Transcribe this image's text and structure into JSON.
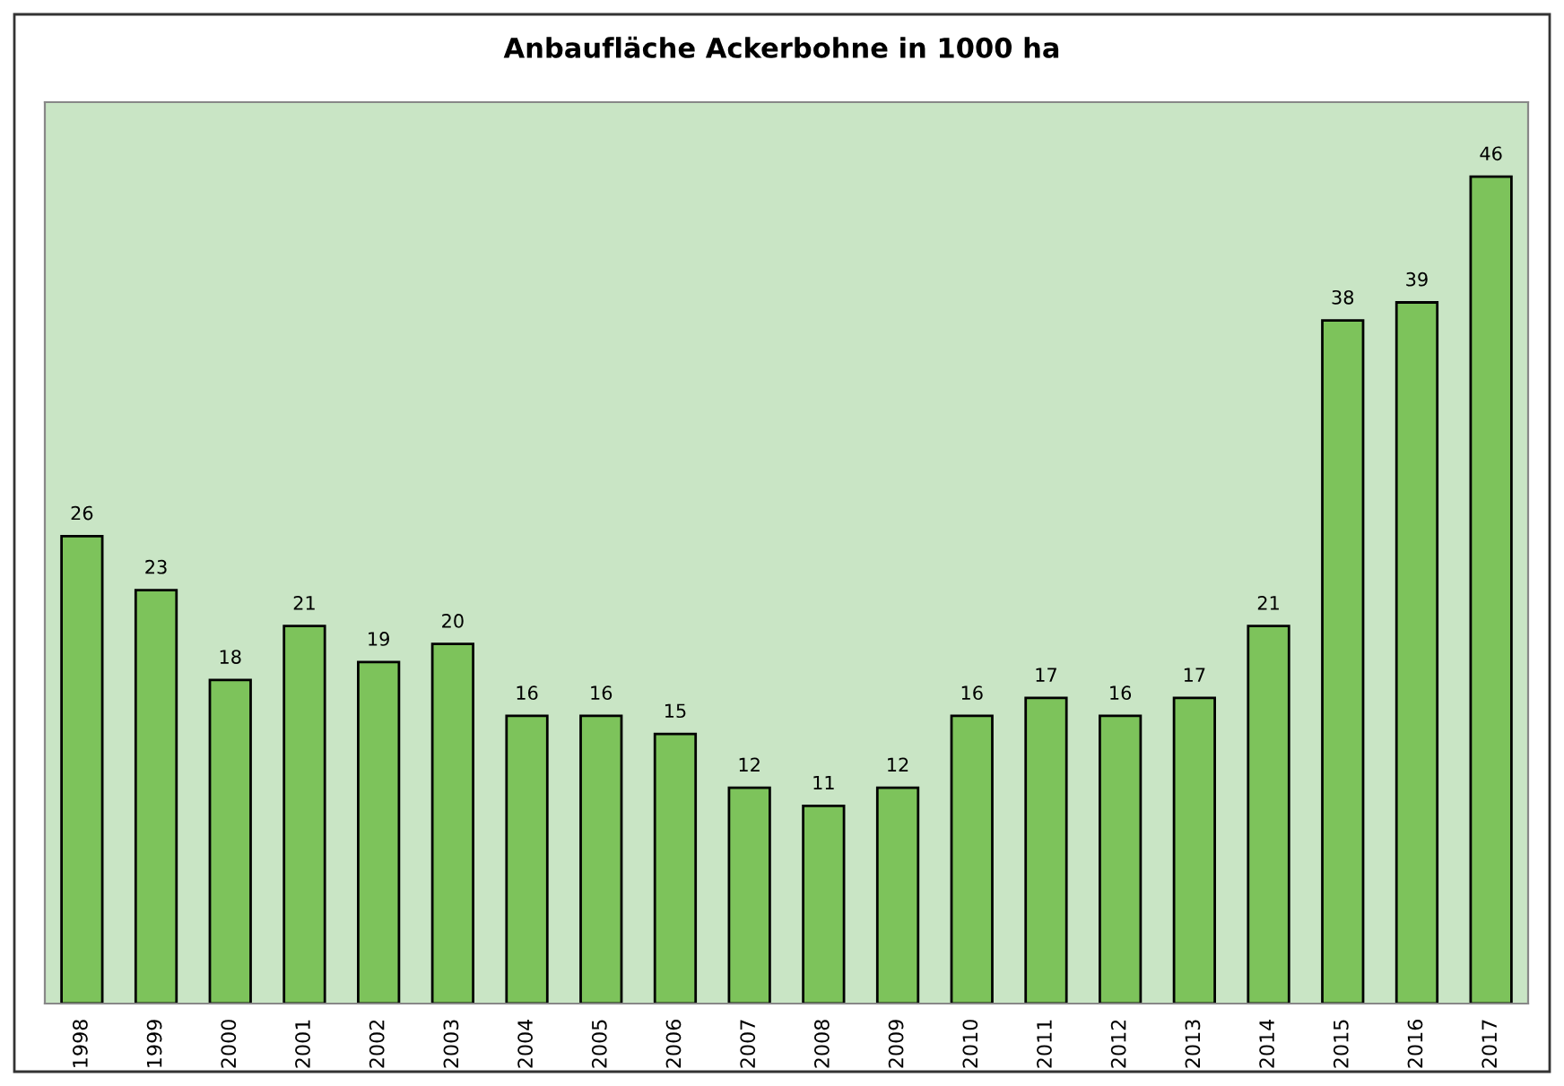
{
  "chart_data": {
    "type": "bar",
    "title": "Anbaufläche Ackerbohne in 1000 ha",
    "categories": [
      "1998",
      "1999",
      "2000",
      "2001",
      "2002",
      "2003",
      "2004",
      "2005",
      "2006",
      "2007",
      "2008",
      "2009",
      "2010",
      "2011",
      "2012",
      "2013",
      "2014",
      "2015",
      "2016",
      "2017"
    ],
    "values": [
      26,
      23,
      18,
      21,
      19,
      20,
      16,
      16,
      15,
      12,
      11,
      12,
      16,
      17,
      16,
      17,
      21,
      38,
      39,
      46
    ],
    "color": "#7dc35b",
    "data_labels": true,
    "grid": false,
    "legend": false
  }
}
